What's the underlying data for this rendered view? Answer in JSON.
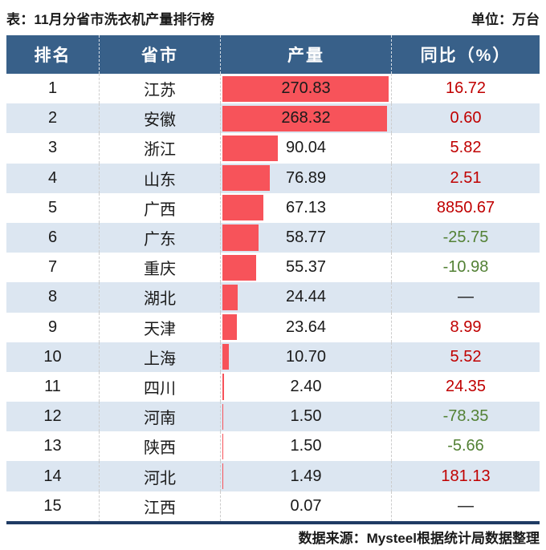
{
  "page": {
    "title": "表：11月分省市洗衣机产量排行榜",
    "unit_label": "单位：万台",
    "source_note": "数据来源：Mysteel根据统计局数据整理"
  },
  "colors": {
    "header_bg": "#386089",
    "row_alt_bg": "#dce6f1",
    "bar_red": "#f7535a",
    "yoy_positive": "#c00000",
    "yoy_negative": "#538135",
    "text": "#1a1a1a",
    "bottom_rule": "#1f3b64"
  },
  "table": {
    "columns": [
      "排名",
      "省市",
      "产量",
      "同比（%）"
    ],
    "rows": [
      {
        "rank": "1",
        "province": "江苏",
        "production": "270.83",
        "yoy": "16.72"
      },
      {
        "rank": "2",
        "province": "安徽",
        "production": "268.32",
        "yoy": "0.60"
      },
      {
        "rank": "3",
        "province": "浙江",
        "production": "90.04",
        "yoy": "5.82"
      },
      {
        "rank": "4",
        "province": "山东",
        "production": "76.89",
        "yoy": "2.51"
      },
      {
        "rank": "5",
        "province": "广西",
        "production": "67.13",
        "yoy": "8850.67"
      },
      {
        "rank": "6",
        "province": "广东",
        "production": "58.77",
        "yoy": "-25.75"
      },
      {
        "rank": "7",
        "province": "重庆",
        "production": "55.37",
        "yoy": "-10.98"
      },
      {
        "rank": "8",
        "province": "湖北",
        "production": "24.44",
        "yoy": "—"
      },
      {
        "rank": "9",
        "province": "天津",
        "production": "23.64",
        "yoy": "8.99"
      },
      {
        "rank": "10",
        "province": "上海",
        "production": "10.70",
        "yoy": "5.52"
      },
      {
        "rank": "11",
        "province": "四川",
        "production": "2.40",
        "yoy": "24.35"
      },
      {
        "rank": "12",
        "province": "河南",
        "production": "1.50",
        "yoy": "-78.35"
      },
      {
        "rank": "13",
        "province": "陕西",
        "production": "1.50",
        "yoy": "-5.66"
      },
      {
        "rank": "14",
        "province": "河北",
        "production": "1.49",
        "yoy": "181.13"
      },
      {
        "rank": "15",
        "province": "江西",
        "production": "0.07",
        "yoy": "—"
      }
    ]
  },
  "chart_data": {
    "type": "bar",
    "orientation": "horizontal",
    "title": "表：11月分省市洗衣机产量排行榜",
    "unit": "万台",
    "categories": [
      "江苏",
      "安徽",
      "浙江",
      "山东",
      "广西",
      "广东",
      "重庆",
      "湖北",
      "天津",
      "上海",
      "四川",
      "河南",
      "陕西",
      "河北",
      "江西"
    ],
    "series": [
      {
        "name": "产量",
        "values": [
          270.83,
          268.32,
          90.04,
          76.89,
          67.13,
          58.77,
          55.37,
          24.44,
          23.64,
          10.7,
          2.4,
          1.5,
          1.5,
          1.49,
          0.07
        ]
      },
      {
        "name": "同比（%）",
        "values": [
          16.72,
          0.6,
          5.82,
          2.51,
          8850.67,
          -25.75,
          -10.98,
          null,
          8.99,
          5.52,
          24.35,
          -78.35,
          -5.66,
          181.13,
          null
        ]
      }
    ],
    "value_range": [
      0,
      270.83
    ],
    "grid": false,
    "legend": false,
    "source": "数据来源：Mysteel根据统计局数据整理"
  }
}
